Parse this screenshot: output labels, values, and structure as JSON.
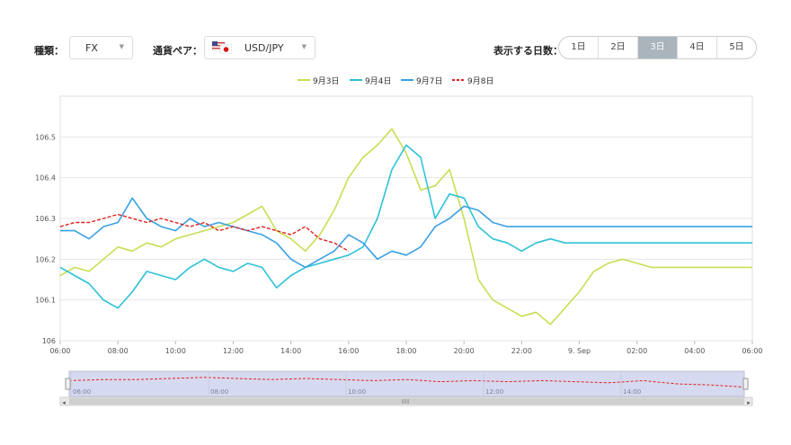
{
  "controls": {
    "type_label": "種類：",
    "type_value": "FX",
    "pair_label": "通貨ペア：",
    "pair_value": "USD/JPY",
    "days_label": "表示する日数：",
    "days": [
      "1日",
      "2日",
      "3日",
      "4日",
      "5日"
    ],
    "active_day": 2
  },
  "colors": {
    "sep3": "#c8de52",
    "sep4": "#2dc2d6",
    "sep7": "#3aa0e4",
    "sep8": "#e02020",
    "navigator_fill": "#d6daf0",
    "active_day": "#a9b4bd"
  },
  "chart_data": {
    "type": "line",
    "xlabel": "",
    "ylabel": "",
    "x_ticks": [
      "06:00",
      "08:00",
      "10:00",
      "12:00",
      "14:00",
      "16:00",
      "18:00",
      "20:00",
      "22:00",
      "9. Sep",
      "02:00",
      "04:00",
      "06:00"
    ],
    "y_ticks": [
      106,
      106.1,
      106.2,
      106.3,
      106.4,
      106.5
    ],
    "ylim": [
      106,
      106.6
    ],
    "xlim_hours": [
      0,
      24
    ],
    "grid": true,
    "legend_position": "top-center",
    "navigator_ticks": [
      "06:00",
      "08:00",
      "10:00",
      "12:00",
      "14:00"
    ],
    "series": [
      {
        "name": "9月3日",
        "color": "#c8de52",
        "dashed": false,
        "x": [
          0,
          0.5,
          1,
          1.5,
          2,
          2.5,
          3,
          3.5,
          4,
          4.5,
          5,
          5.5,
          6,
          6.5,
          7,
          7.5,
          8,
          8.5,
          9,
          9.5,
          10,
          10.5,
          11,
          11.5,
          12,
          12.5,
          13,
          13.5,
          14,
          14.5,
          15,
          15.5,
          16,
          16.5,
          17,
          17.5,
          18,
          18.5,
          19,
          19.5,
          20,
          20.5,
          21,
          21.5,
          22,
          22.5,
          23,
          23.5,
          24
        ],
        "y": [
          106.16,
          106.18,
          106.17,
          106.2,
          106.23,
          106.22,
          106.24,
          106.23,
          106.25,
          106.26,
          106.27,
          106.28,
          106.29,
          106.31,
          106.33,
          106.27,
          106.25,
          106.22,
          106.26,
          106.32,
          106.4,
          106.45,
          106.48,
          106.52,
          106.46,
          106.37,
          106.38,
          106.42,
          106.3,
          106.15,
          106.1,
          106.08,
          106.06,
          106.07,
          106.04,
          106.08,
          106.12,
          106.17,
          106.19,
          106.2,
          106.19,
          106.18,
          106.18,
          106.18,
          106.18,
          106.18,
          106.18,
          106.18,
          106.18
        ]
      },
      {
        "name": "9月4日",
        "color": "#2dc2d6",
        "dashed": false,
        "x": [
          0,
          0.5,
          1,
          1.5,
          2,
          2.5,
          3,
          3.5,
          4,
          4.5,
          5,
          5.5,
          6,
          6.5,
          7,
          7.5,
          8,
          8.5,
          9,
          9.5,
          10,
          10.5,
          11,
          11.5,
          12,
          12.5,
          13,
          13.5,
          14,
          14.5,
          15,
          15.5,
          16,
          16.5,
          17,
          17.5,
          18,
          18.5,
          19,
          19.5,
          20,
          20.5,
          21,
          21.5,
          22,
          22.5,
          23,
          23.5,
          24
        ],
        "y": [
          106.18,
          106.16,
          106.14,
          106.1,
          106.08,
          106.12,
          106.17,
          106.16,
          106.15,
          106.18,
          106.2,
          106.18,
          106.17,
          106.19,
          106.18,
          106.13,
          106.16,
          106.18,
          106.19,
          106.2,
          106.21,
          106.23,
          106.3,
          106.42,
          106.48,
          106.45,
          106.3,
          106.36,
          106.35,
          106.28,
          106.25,
          106.24,
          106.22,
          106.24,
          106.25,
          106.24,
          106.24,
          106.24,
          106.24,
          106.24,
          106.24,
          106.24,
          106.24,
          106.24,
          106.24,
          106.24,
          106.24,
          106.24,
          106.24
        ]
      },
      {
        "name": "9月7日",
        "color": "#3aa0e4",
        "dashed": false,
        "x": [
          0,
          0.5,
          1,
          1.5,
          2,
          2.5,
          3,
          3.5,
          4,
          4.5,
          5,
          5.5,
          6,
          6.5,
          7,
          7.5,
          8,
          8.5,
          9,
          9.5,
          10,
          10.5,
          11,
          11.5,
          12,
          12.5,
          13,
          13.5,
          14,
          14.5,
          15,
          15.5,
          16,
          16.5,
          17,
          17.5,
          18,
          18.5,
          19,
          19.5,
          20,
          20.5,
          21,
          21.5,
          22,
          22.5,
          23,
          23.5,
          24
        ],
        "y": [
          106.27,
          106.27,
          106.25,
          106.28,
          106.29,
          106.35,
          106.3,
          106.28,
          106.27,
          106.3,
          106.28,
          106.29,
          106.28,
          106.27,
          106.26,
          106.24,
          106.2,
          106.18,
          106.2,
          106.22,
          106.26,
          106.24,
          106.2,
          106.22,
          106.21,
          106.23,
          106.28,
          106.3,
          106.33,
          106.32,
          106.29,
          106.28,
          106.28,
          106.28,
          106.28,
          106.28,
          106.28,
          106.28,
          106.28,
          106.28,
          106.28,
          106.28,
          106.28,
          106.28,
          106.28,
          106.28,
          106.28,
          106.28,
          106.28
        ]
      },
      {
        "name": "9月8日",
        "color": "#e02020",
        "dashed": true,
        "x": [
          0,
          0.5,
          1,
          1.5,
          2,
          2.5,
          3,
          3.5,
          4,
          4.5,
          5,
          5.5,
          6,
          6.5,
          7,
          7.5,
          8,
          8.5,
          9,
          9.5,
          10
        ],
        "y": [
          106.28,
          106.29,
          106.29,
          106.3,
          106.31,
          106.3,
          106.29,
          106.3,
          106.29,
          106.28,
          106.29,
          106.27,
          106.28,
          106.27,
          106.28,
          106.27,
          106.26,
          106.28,
          106.25,
          106.24,
          106.22
        ]
      }
    ]
  }
}
